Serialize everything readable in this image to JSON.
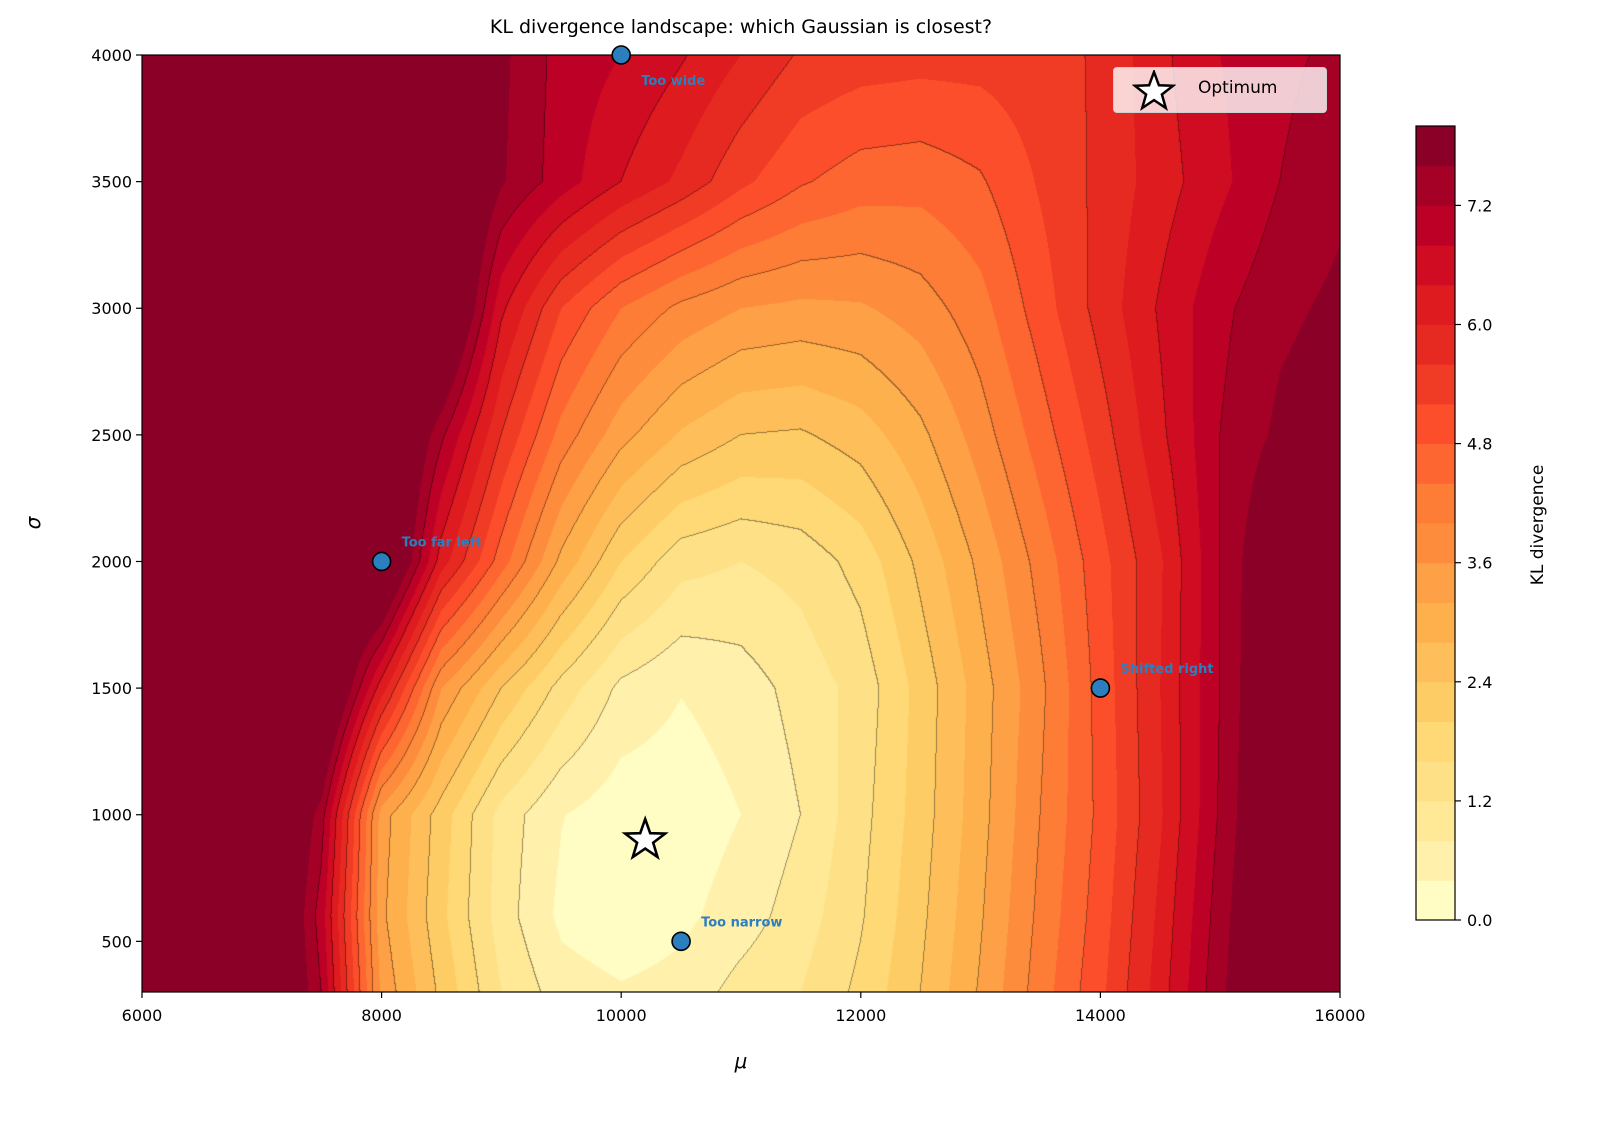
{
  "chart_data": {
    "type": "contour",
    "title": "KL divergence landscape: which Gaussian is closest?",
    "xlabel": "μ",
    "ylabel": "σ",
    "xlim": [
      6000,
      16000
    ],
    "ylim": [
      300,
      4000
    ],
    "x_ticks": [
      6000,
      8000,
      10000,
      12000,
      14000,
      16000
    ],
    "y_ticks": [
      500,
      1000,
      1500,
      2000,
      2500,
      3000,
      3500,
      4000
    ],
    "colorbar": {
      "label": "KL divergence",
      "range": [
        0,
        8
      ],
      "ticks": [
        "0.0",
        "1.2",
        "2.4",
        "3.6",
        "4.8",
        "6.0",
        "7.2"
      ],
      "level_step": 0.4,
      "line_step": 0.8,
      "colormap": [
        "#fffcc4",
        "#fff1ab",
        "#ffe896",
        "#fee187",
        "#fed976",
        "#fecc65",
        "#febf5a",
        "#feb04c",
        "#fea046",
        "#fd8c3c",
        "#fd7d36",
        "#fd6631",
        "#fc4e2a",
        "#f03b25",
        "#e72a21",
        "#de1b1e",
        "#cf0c21",
        "#bd0026",
        "#a50026",
        "#8b0026"
      ]
    },
    "grid": {
      "mu": [
        6000,
        7000,
        7500,
        8000,
        8500,
        9000,
        9500,
        10000,
        10500,
        11000,
        11500,
        12000,
        12500,
        13000,
        13500,
        14000,
        14500,
        15000,
        15500,
        16000
      ],
      "sigma": [
        300,
        600,
        1000,
        1500,
        2000,
        2500,
        3000,
        3500,
        4000
      ],
      "kl": [
        [
          9,
          9,
          7.2,
          3.5,
          2.3,
          1.2,
          0.6,
          0.45,
          0.55,
          0.95,
          1.2,
          1.7,
          2.4,
          3.25,
          4.2,
          5.1,
          6.2,
          7.5,
          8.6,
          9
        ],
        [
          9,
          9,
          7.0,
          3.3,
          2.1,
          1.0,
          0.3,
          0.1,
          0.3,
          0.6,
          1.0,
          1.55,
          2.3,
          3.15,
          4.1,
          5.0,
          6.1,
          7.4,
          8.6,
          9
        ],
        [
          9,
          9,
          7.4,
          3.4,
          2.2,
          1.05,
          0.42,
          0.15,
          0.15,
          0.4,
          0.8,
          1.45,
          2.2,
          3.05,
          4.0,
          4.9,
          5.95,
          7.25,
          8.5,
          9
        ],
        [
          9,
          9,
          9,
          6.2,
          3.6,
          2.4,
          1.45,
          0.7,
          0.42,
          0.6,
          0.95,
          1.35,
          2.15,
          3.0,
          3.9,
          4.95,
          6.0,
          7.2,
          8.4,
          9
        ],
        [
          9,
          9,
          9,
          9,
          6.2,
          4.6,
          3.1,
          2.0,
          1.35,
          1.2,
          1.35,
          1.75,
          2.5,
          3.3,
          4.15,
          5.05,
          5.95,
          7.2,
          8.3,
          9
        ],
        [
          9,
          9,
          9,
          9,
          7.3,
          5.6,
          4.25,
          3.35,
          2.75,
          2.4,
          2.35,
          2.6,
          3.1,
          3.8,
          4.6,
          5.4,
          6.3,
          7.2,
          7.7,
          7.9
        ],
        [
          9,
          9,
          9,
          9,
          9,
          6.5,
          5.2,
          4.4,
          3.9,
          3.6,
          3.5,
          3.55,
          3.8,
          4.25,
          5.0,
          5.75,
          6.45,
          7.1,
          7.5,
          7.7
        ],
        [
          9,
          9,
          9,
          9,
          9,
          7.65,
          7.0,
          6.4,
          5.9,
          5.3,
          4.85,
          4.6,
          4.55,
          4.75,
          5.25,
          5.7,
          6.2,
          6.7,
          7.2,
          7.5
        ],
        [
          9,
          9,
          9,
          9,
          8.5,
          7.7,
          7.05,
          6.8,
          6.45,
          6.0,
          5.55,
          5.4,
          5.35,
          5.35,
          5.45,
          5.65,
          6.3,
          6.8,
          7.1,
          7.3
        ]
      ]
    },
    "points": [
      {
        "label": "Too wide",
        "mu": 10000,
        "sigma": 4000
      },
      {
        "label": "Too far left",
        "mu": 8000,
        "sigma": 2000
      },
      {
        "label": "Shifted right",
        "mu": 14000,
        "sigma": 1500
      },
      {
        "label": "Too narrow",
        "mu": 10500,
        "sigma": 500
      }
    ],
    "optimum": {
      "mu": 10200,
      "sigma": 900
    },
    "legend": {
      "label": "Optimum",
      "placement": "top-right"
    },
    "point_color": "#2b7fbf",
    "annotation_color": "#2b7fbf"
  }
}
